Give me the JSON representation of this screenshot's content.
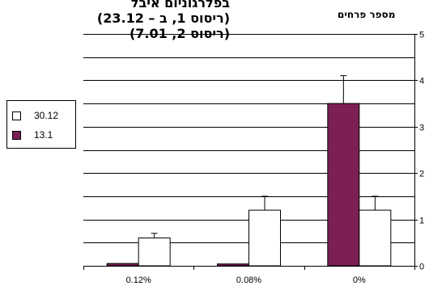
{
  "title_lines": [
    "בפלרגוניום איבל",
    "(ריסוס 1, ב – 23.12)",
    "(ריסוס 2, 7.01)"
  ],
  "chart_data": {
    "type": "bar",
    "title": "בפלרגוניום איבל (ריסוס 1, ב – 23.12) (ריסוס 2, 7.01)",
    "ylabel": "מספר פרחים",
    "xlabel": "",
    "categories": [
      "0.12%",
      "0.08%",
      "0%"
    ],
    "ylim": [
      0,
      5
    ],
    "yticks": [
      0,
      1,
      2,
      3,
      4,
      5
    ],
    "ytick_labels": [
      "0",
      "1",
      "2",
      "3",
      "4",
      "5"
    ],
    "grid": true,
    "legend_position": "left",
    "series": [
      {
        "name": "13.1",
        "color": "#7b1f55",
        "values": [
          0.05,
          0.04,
          3.5
        ],
        "errors": [
          0,
          0,
          0.6
        ]
      },
      {
        "name": "30.12",
        "color": "#ffffff",
        "values": [
          0.6,
          1.2,
          1.2
        ],
        "errors": [
          0.1,
          0.3,
          0.3
        ]
      }
    ]
  },
  "legend": {
    "items": [
      {
        "label": "30.12",
        "color": "#ffffff"
      },
      {
        "label": "13.1",
        "color": "#7b1f55"
      }
    ]
  }
}
